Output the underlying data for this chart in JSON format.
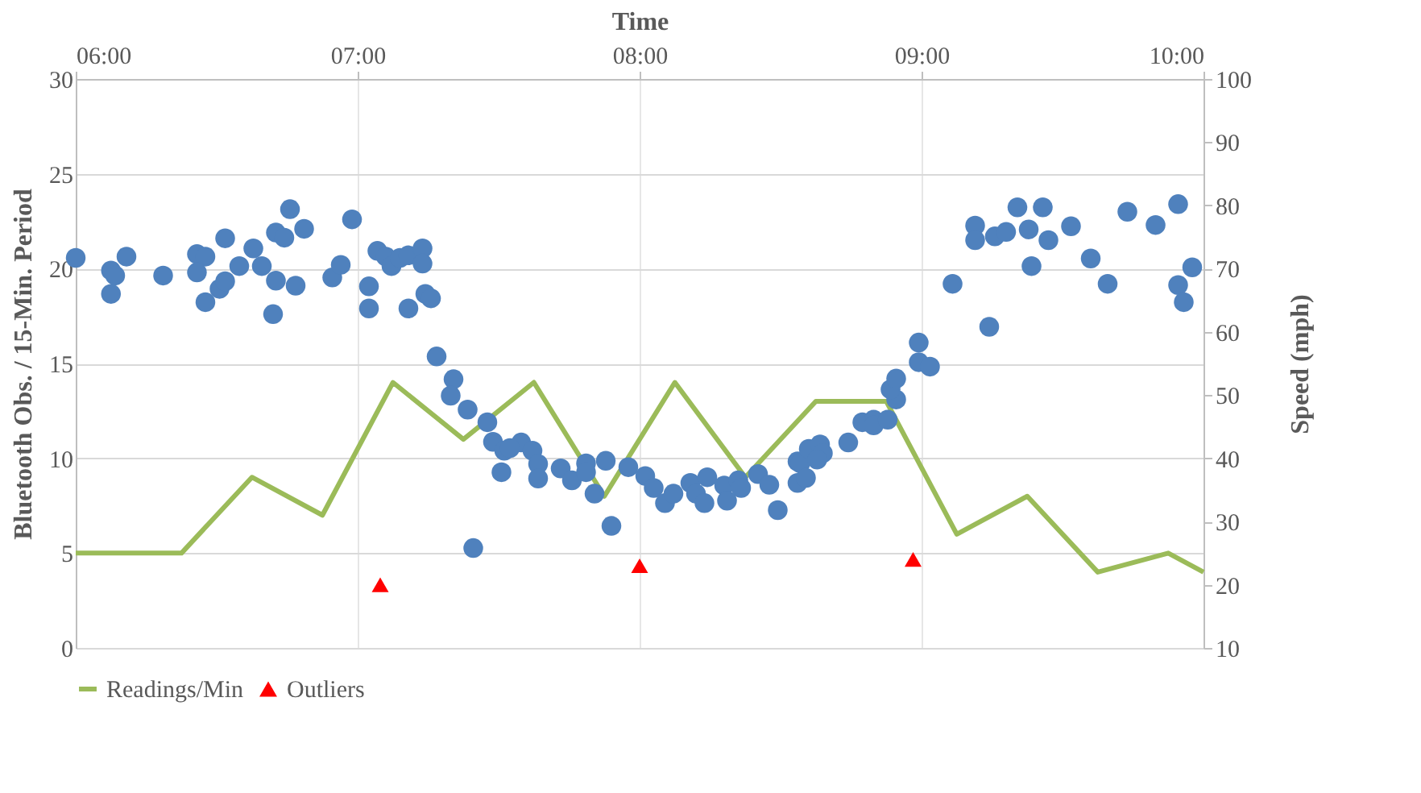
{
  "chart_data": {
    "type": "line",
    "xlabel": "Time",
    "ylabel": "Bluetooth Obs. / 15-Min. Period",
    "y2label": "Speed (mph)",
    "xlim": [
      6,
      10
    ],
    "xticks": [
      {
        "value": 6,
        "label": "06:00"
      },
      {
        "value": 7,
        "label": "07:00"
      },
      {
        "value": 8,
        "label": "08:00"
      },
      {
        "value": 9,
        "label": "09:00"
      },
      {
        "value": 10,
        "label": "10:00"
      }
    ],
    "ylim": [
      0,
      30
    ],
    "yticks": [
      0,
      5,
      10,
      15,
      20,
      25,
      30
    ],
    "y2lim": [
      10,
      100
    ],
    "y2ticks": [
      10,
      20,
      30,
      40,
      50,
      60,
      70,
      80,
      90,
      100
    ],
    "grid": true,
    "legend": "bottom",
    "series": [
      {
        "name": "Readings/Min",
        "type": "line",
        "color": "#9bbb59",
        "line_style": "solid",
        "marker": "none",
        "x": [
          6.0,
          6.375,
          6.625,
          6.875,
          7.125,
          7.375,
          7.625,
          7.875,
          8.125,
          8.375,
          8.625,
          8.875,
          9.125,
          9.375,
          9.625,
          9.875,
          10.0
        ],
        "values": [
          5,
          5,
          9,
          7,
          14,
          11,
          14,
          8,
          14,
          9,
          13,
          13,
          6,
          8,
          4,
          5,
          4
        ]
      },
      {
        "type": "scatter",
        "axis": "y2",
        "color": "#4f81bd",
        "marker": "circle",
        "x": [
          6.0,
          6.125,
          6.14,
          6.125,
          6.18,
          6.31,
          6.43,
          6.46,
          6.43,
          6.46,
          6.53,
          6.51,
          6.53,
          6.58,
          6.63,
          6.66,
          6.71,
          6.74,
          6.76,
          6.81,
          6.71,
          6.78,
          6.7,
          6.91,
          6.94,
          6.98,
          7.04,
          7.04,
          7.07,
          7.1,
          7.12,
          7.15,
          7.18,
          7.23,
          7.23,
          7.18,
          7.24,
          7.26,
          7.28,
          7.34,
          7.33,
          7.39,
          7.46,
          7.48,
          7.51,
          7.52,
          7.58,
          7.54,
          7.62,
          7.64,
          7.64,
          7.72,
          7.76,
          7.81,
          7.81,
          7.84,
          7.88,
          7.9,
          7.41,
          7.96,
          8.02,
          8.05,
          8.09,
          8.12,
          8.18,
          8.2,
          8.23,
          8.24,
          8.3,
          8.31,
          8.35,
          8.36,
          8.42,
          8.46,
          8.49,
          8.56,
          8.56,
          8.57,
          8.59,
          8.6,
          8.64,
          8.65,
          8.63,
          8.74,
          8.79,
          8.83,
          8.83,
          8.88,
          8.91,
          8.89,
          8.91,
          8.99,
          8.99,
          9.03,
          9.11,
          9.24,
          9.19,
          9.19,
          9.26,
          9.3,
          9.34,
          9.38,
          9.39,
          9.43,
          9.45,
          9.53,
          9.6,
          9.66,
          9.73,
          9.83,
          9.91,
          9.91,
          9.93,
          9.96
        ],
        "values": [
          71.7,
          69.7,
          68.9,
          66,
          71.9,
          68.9,
          72.3,
          71.9,
          69.4,
          64.7,
          74.8,
          66.8,
          68,
          70.4,
          73.2,
          70.4,
          75.7,
          74.9,
          79.4,
          76.3,
          68.1,
          67.3,
          62.8,
          68.6,
          70.6,
          77.8,
          67.2,
          63.7,
          72.8,
          71.9,
          70.4,
          71.7,
          72.1,
          73.2,
          70.8,
          63.7,
          66,
          65.3,
          56.1,
          52.5,
          49.9,
          47.7,
          45.7,
          42.6,
          37.8,
          41.2,
          42.5,
          41.6,
          41.2,
          39.1,
          36.8,
          38.4,
          36.5,
          39.2,
          37.8,
          34.4,
          39.6,
          29.3,
          25.8,
          38.6,
          37.2,
          35.3,
          32.9,
          34.4,
          36.1,
          34.4,
          32.9,
          37,
          35.7,
          33.3,
          36.5,
          35.3,
          37.5,
          35.8,
          31.8,
          39.5,
          36.1,
          39.2,
          36.9,
          41.5,
          42.2,
          40.8,
          39.8,
          42.5,
          45.7,
          46.1,
          45.2,
          46.1,
          49.3,
          50.9,
          52.6,
          58.3,
          55.2,
          54.5,
          67.6,
          60.8,
          76.8,
          74.5,
          75.1,
          75.8,
          79.7,
          76.2,
          70.4,
          79.7,
          74.5,
          76.7,
          71.6,
          67.6,
          79,
          76.9,
          80.2,
          67.4,
          64.7,
          70.2
        ]
      },
      {
        "name": "Outliers",
        "type": "scatter",
        "axis": "y2",
        "color": "#ff0000",
        "marker": "triangle",
        "x": [
          7.08,
          8.0,
          8.97
        ],
        "values": [
          20,
          23,
          24
        ]
      }
    ]
  }
}
